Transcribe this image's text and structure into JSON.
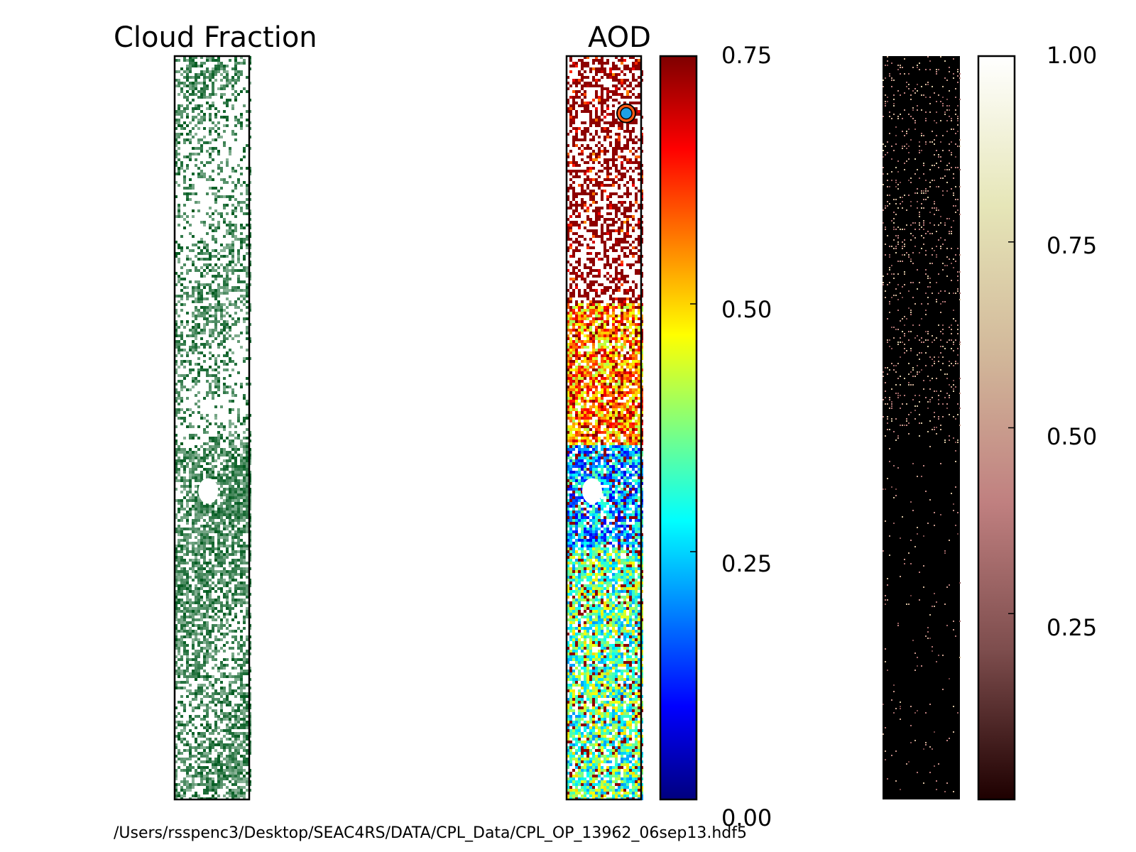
{
  "chart_data": [
    {
      "type": "heatmap",
      "title": "Cloud Fraction",
      "colormap": "Greens",
      "colors": {
        "low": "#ffffff",
        "high": "#005a1e"
      },
      "axes": "off",
      "regions": [
        {
          "from": 0.0,
          "to": 0.52,
          "density": 0.35
        },
        {
          "from": 0.52,
          "to": 0.62,
          "density": 0.75
        },
        {
          "from": 0.62,
          "to": 1.0,
          "density": 0.6
        }
      ],
      "missing_patches": [
        {
          "name": "blank-patch",
          "y_fraction": 0.585,
          "x_fraction": 0.45
        }
      ]
    },
    {
      "type": "heatmap",
      "title": "AOD",
      "colormap": "jet",
      "vmin": 0.0,
      "vmax": 0.75,
      "colorbar": {
        "ticks": [
          0.0,
          0.25,
          0.5,
          0.75
        ],
        "tick_labels": [
          "0.00",
          "0.25",
          "0.50",
          "0.75"
        ],
        "stops": [
          "#00007f",
          "#0000ff",
          "#007fff",
          "#00ffff",
          "#7fff7f",
          "#ffff00",
          "#ff7f00",
          "#ff0000",
          "#7f0000"
        ]
      },
      "regions": [
        {
          "from": 0.0,
          "to": 0.33,
          "typical_value": 0.74,
          "note": "sparse, mostly missing"
        },
        {
          "from": 0.33,
          "to": 0.52,
          "typical_value": 0.55
        },
        {
          "from": 0.52,
          "to": 0.66,
          "typical_value": 0.22
        },
        {
          "from": 0.66,
          "to": 1.0,
          "typical_value": 0.35
        }
      ],
      "marker": {
        "x_fraction": 0.8,
        "y_fraction": 0.077,
        "fill": "#1ea0e6",
        "ring": "#ff5a14"
      }
    },
    {
      "type": "heatmap",
      "title": "",
      "colormap": "pink",
      "vmin": 0.0,
      "vmax": 1.0,
      "colorbar": {
        "ticks": [
          0.25,
          0.5,
          0.75,
          1.0
        ],
        "tick_labels": [
          "0.25",
          "0.50",
          "0.75",
          "1.00"
        ],
        "stops": [
          "#1e0000",
          "#7d4d4d",
          "#c08080",
          "#d2b89a",
          "#e6e6b8",
          "#ffffff"
        ]
      },
      "regions": [
        {
          "from": 0.0,
          "to": 0.52,
          "density": 0.12,
          "typical_value": 0.45
        },
        {
          "from": 0.52,
          "to": 1.0,
          "density": 0.02,
          "typical_value": 0.4
        }
      ]
    }
  ],
  "caption": "/Users/rsspenc3/Desktop/SEAC4RS/DATA/CPL_Data/CPL_OP_13962_06sep13.hdf5"
}
